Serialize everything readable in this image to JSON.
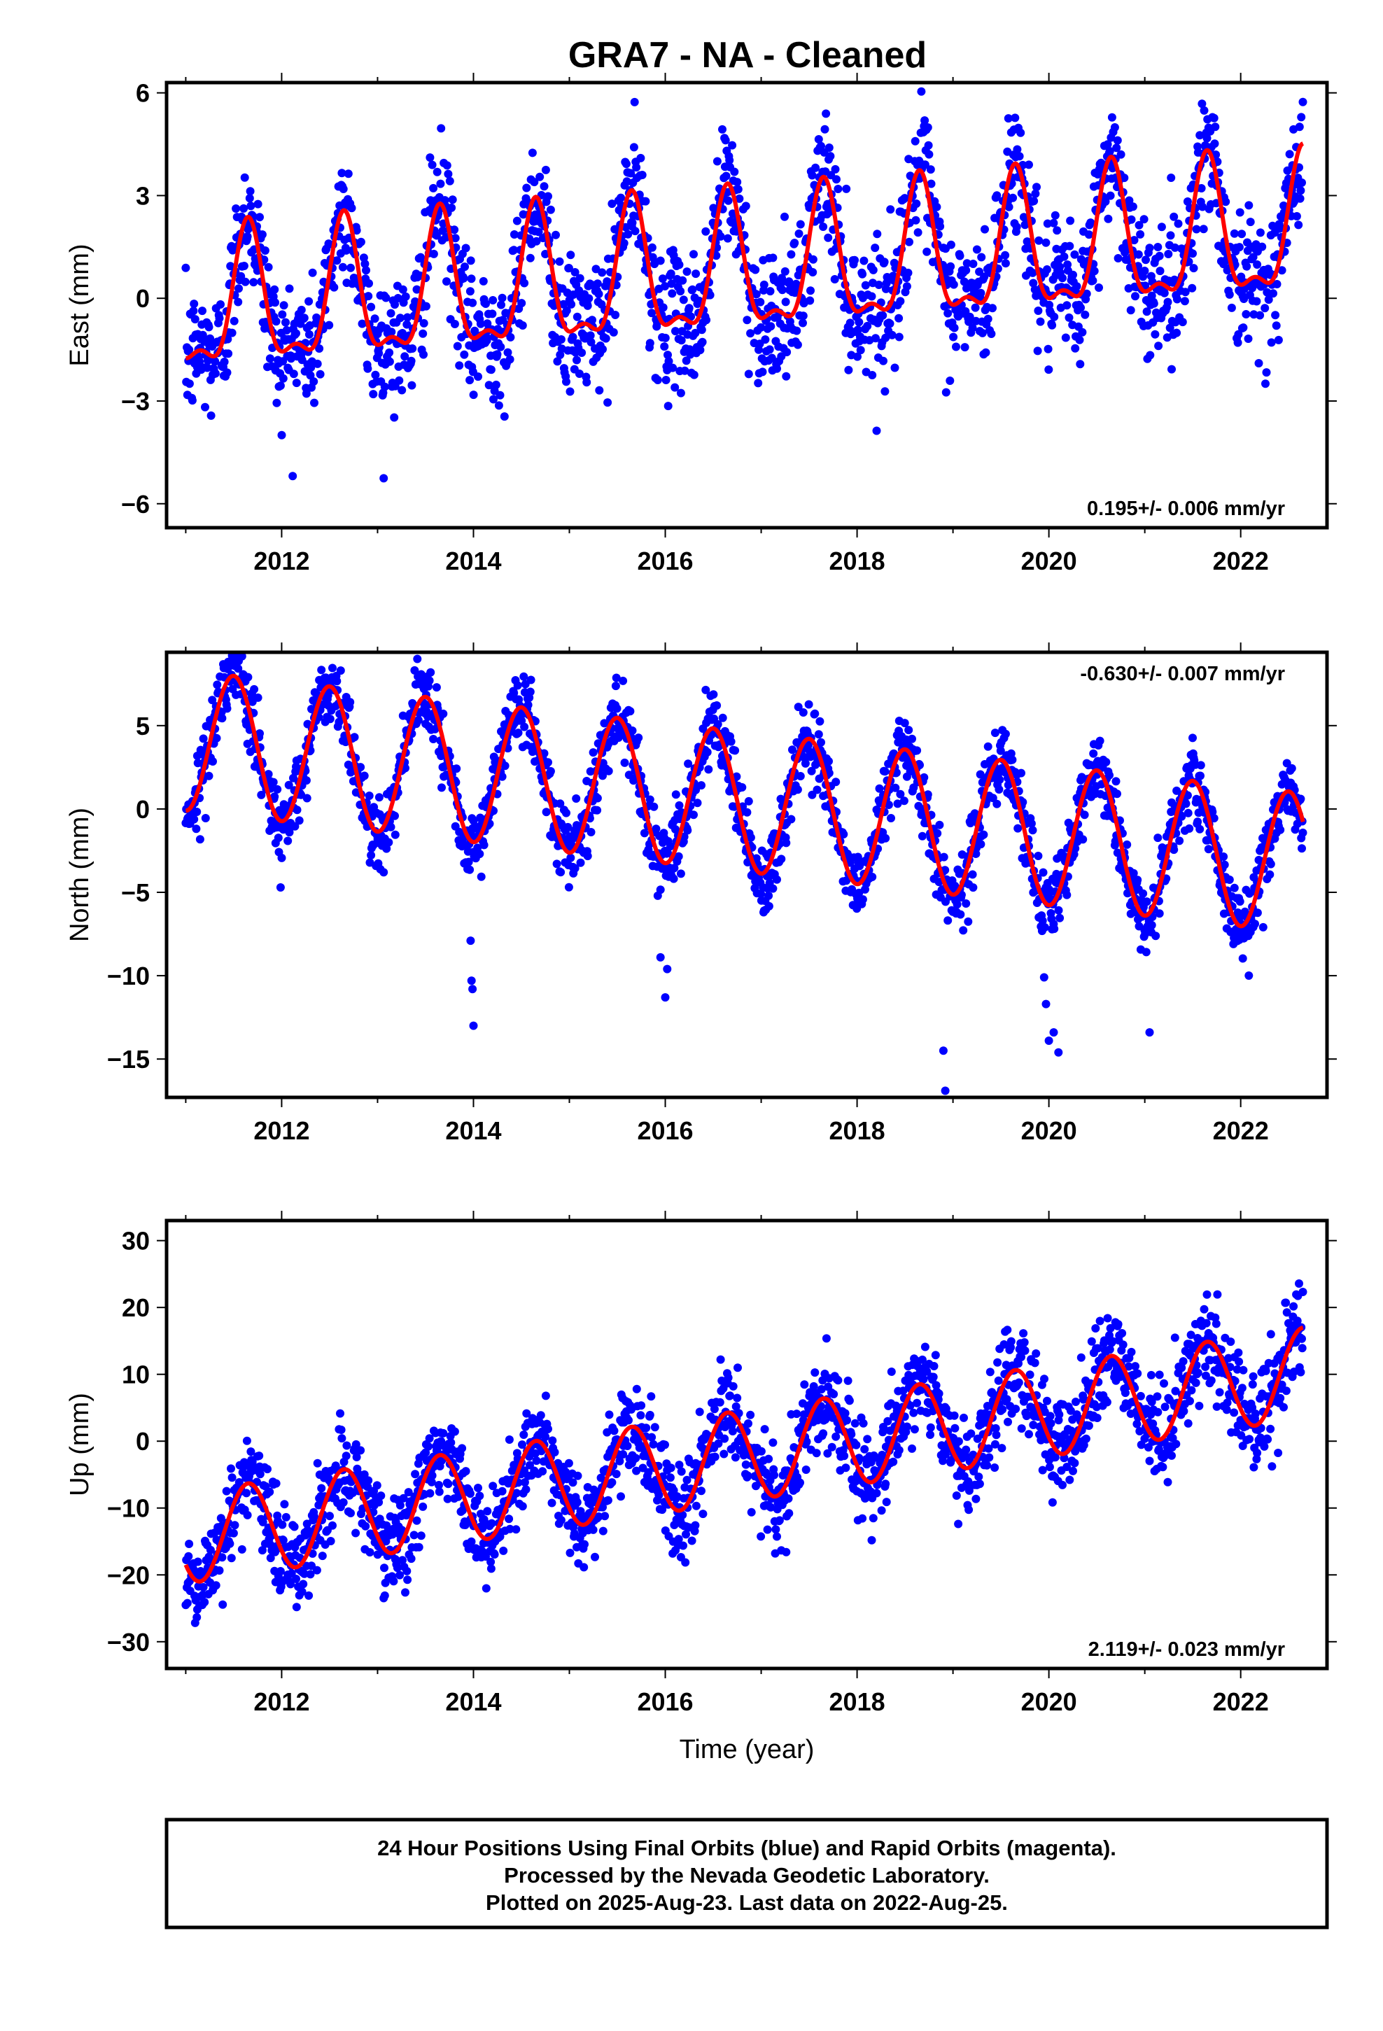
{
  "title": "GRA7  - NA - Cleaned",
  "chart_data": [
    {
      "type": "scatter",
      "name": "east",
      "ylabel": "East (mm)",
      "xlabel": "",
      "xlim": [
        2010.8,
        2022.9
      ],
      "ylim": [
        -6.7,
        6.3
      ],
      "xticks": [
        2012,
        2014,
        2016,
        2018,
        2020,
        2022
      ],
      "yticks": [
        -6,
        -3,
        0,
        3,
        6
      ],
      "ytick_labels": [
        "−6",
        "−3",
        "0",
        "3",
        "6"
      ],
      "rate_text": "0.195+/- 0.006 mm/yr",
      "rate_position": "bottom-right",
      "model": {
        "start": 2011.0,
        "end": 2022.65,
        "offset": -0.4,
        "rate": 0.195,
        "annual_amp": 1.9,
        "annual_peak": 0.65,
        "semiannual_amp": 0.75,
        "semiannual_peak": 0.15
      },
      "scatter": {
        "sigma": 0.95
      },
      "series": [
        {
          "color": "#0000ff"
        },
        {
          "color": "#ff0000"
        }
      ]
    },
    {
      "type": "scatter",
      "name": "north",
      "ylabel": "North (mm)",
      "xlabel": "",
      "xlim": [
        2010.8,
        2022.9
      ],
      "ylim": [
        -17.3,
        9.4
      ],
      "xticks": [
        2012,
        2014,
        2016,
        2018,
        2020,
        2022
      ],
      "yticks": [
        -15,
        -10,
        -5,
        0,
        5
      ],
      "ytick_labels": [
        "−15",
        "−10",
        "−5",
        "0",
        "5"
      ],
      "rate_text": "-0.630+/- 0.007 mm/yr",
      "rate_position": "top-right",
      "model": {
        "start": 2011.0,
        "end": 2022.65,
        "offset": 4.1,
        "rate": -0.63,
        "annual_amp": 4.2,
        "annual_peak": 0.5,
        "semiannual_amp": 0.0,
        "semiannual_peak": 0.0
      },
      "scatter": {
        "sigma": 1.1
      },
      "outliers": [
        [
          2013.98,
          -10.3
        ],
        [
          2013.99,
          -10.8
        ],
        [
          2014.0,
          -13.0
        ],
        [
          2013.97,
          -7.9
        ],
        [
          2015.95,
          -8.9
        ],
        [
          2016.0,
          -11.3
        ],
        [
          2016.02,
          -9.6
        ],
        [
          2018.9,
          -14.5
        ],
        [
          2018.92,
          -16.9
        ],
        [
          2019.95,
          -10.1
        ],
        [
          2019.97,
          -11.7
        ],
        [
          2020.05,
          -13.4
        ],
        [
          2020.1,
          -14.6
        ],
        [
          2021.05,
          -13.4
        ],
        [
          2020.0,
          -13.9
        ]
      ],
      "series": [
        {
          "color": "#0000ff"
        },
        {
          "color": "#ff0000"
        }
      ]
    },
    {
      "type": "scatter",
      "name": "up",
      "ylabel": "Up (mm)",
      "xlabel": "Time (year)",
      "xlim": [
        2010.8,
        2022.9
      ],
      "ylim": [
        -34,
        33
      ],
      "xticks": [
        2012,
        2014,
        2016,
        2018,
        2020,
        2022
      ],
      "yticks": [
        -30,
        -20,
        -10,
        0,
        10,
        20,
        30
      ],
      "ytick_labels": [
        "−30",
        "−20",
        "−10",
        "0",
        "10",
        "20",
        "30"
      ],
      "rate_text": "2.119+/- 0.023 mm/yr",
      "rate_position": "bottom-right",
      "model": {
        "start": 2011.0,
        "end": 2022.65,
        "offset": -14.5,
        "rate": 2.119,
        "annual_amp": 6.8,
        "annual_peak": 0.65,
        "semiannual_amp": 0.0,
        "semiannual_peak": 0.0
      },
      "scatter": {
        "sigma": 3.6
      },
      "series": [
        {
          "color": "#0000ff"
        },
        {
          "color": "#ff0000"
        }
      ]
    }
  ],
  "footer": {
    "line1": "24 Hour Positions Using Final Orbits (blue) and Rapid Orbits (magenta).",
    "line2": "Processed by the Nevada Geodetic Laboratory.",
    "line3": "Plotted on 2025-Aug-23. Last data on 2022-Aug-25."
  }
}
